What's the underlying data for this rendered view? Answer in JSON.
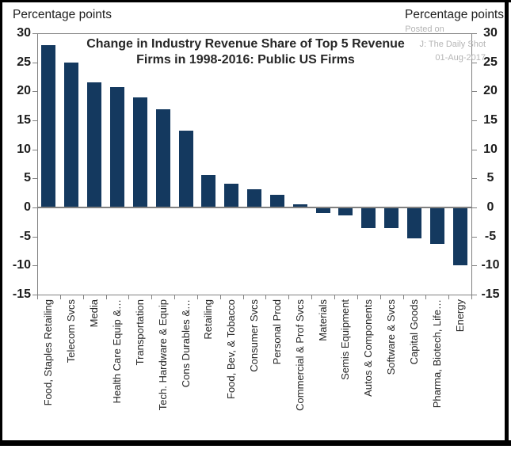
{
  "chart": {
    "left_axis_title": "Percentage points",
    "right_axis_title": "Percentage points",
    "title_line1": "Change in Industry Revenue Share of Top 5 Revenue",
    "title_line2": "Firms in 1998-2016: Public US Firms"
  },
  "watermark": {
    "line1": "Posted on",
    "line2": "J: The Daily Shot",
    "line3": "01-Aug-2017"
  },
  "chart_data": {
    "type": "bar",
    "title": "Change in Industry Revenue Share of Top 5 Revenue Firms in 1998-2016: Public US Firms",
    "ylabel_left": "Percentage points",
    "ylabel_right": "Percentage points",
    "ylim": [
      -15,
      30
    ],
    "yticks": [
      30,
      25,
      20,
      15,
      10,
      5,
      0,
      -5,
      -10,
      -15
    ],
    "grid": false,
    "legend": "none",
    "categories": [
      "Food, Staples Retailing",
      "Telecom Svcs",
      "Media",
      "Health Care Equip &…",
      "Transportation",
      "Tech. Hardware & Equip",
      "Cons Durables &…",
      "Retailing",
      "Food, Bev, & Tobacco",
      "Consumer Svcs",
      "Personal Prod",
      "Commercial & Prof Svcs",
      "Materials",
      "Semis Equipment",
      "Autos & Components",
      "Software & Svcs",
      "Capital Goods",
      "Pharma, Biotech, Life…",
      "Energy"
    ],
    "values": [
      28.0,
      24.9,
      21.5,
      20.7,
      18.9,
      16.9,
      13.3,
      5.6,
      4.1,
      3.2,
      2.2,
      0.5,
      -1.0,
      -1.3,
      -3.6,
      -3.6,
      -5.3,
      -6.2,
      -10.0
    ],
    "colors": {
      "bar": "#14395F",
      "axis": "#808080",
      "zero_line": "#808080",
      "text": "#1d1d1d",
      "watermark": "#b5b5b5",
      "frame": "#000000"
    }
  }
}
